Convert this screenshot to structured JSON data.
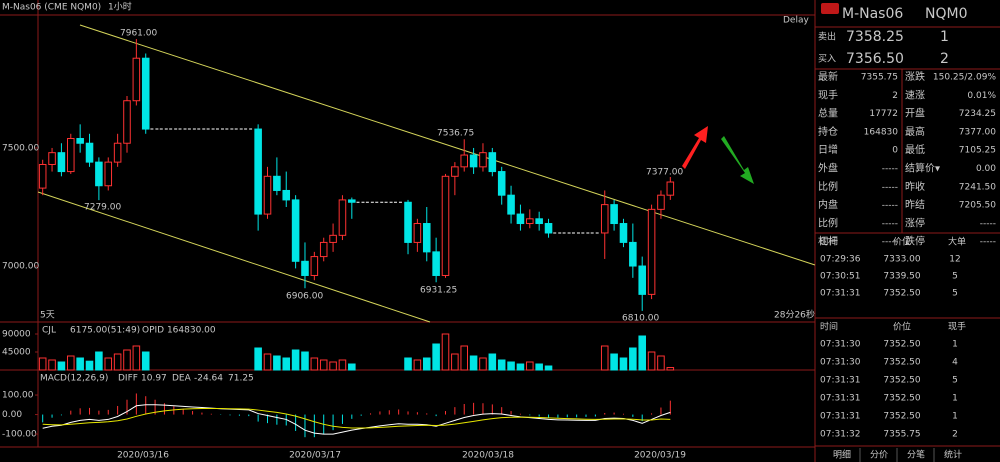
{
  "header": {
    "symbol": "M-Nas06",
    "code": "NQM0"
  },
  "chart_data": [
    {
      "type": "candlestick",
      "title": "M-Nas06 (CME NQM0)",
      "interval": "1小时",
      "delay": "Delay",
      "span": "5天",
      "countdown": "28分26秒",
      "date_labels": [
        "2020/03/16",
        "2020/03/17",
        "2020/03/18",
        "2020/03/19"
      ],
      "annotations": [
        "7961.00",
        "7279.00",
        "6906.00",
        "7536.75",
        "6931.25",
        "6810.00",
        "7377.00"
      ],
      "up_color": "#ff3232",
      "down_color": "#00e5e5",
      "flat_color": "#ffffff",
      "ylim": [
        6763,
        8063
      ],
      "yticks": [
        {
          "value": 7000,
          "label": "7000.00"
        },
        {
          "value": 7500,
          "label": "7500.00"
        }
      ],
      "ohlc": [
        [
          7330,
          7450,
          7300,
          7430
        ],
        [
          7430,
          7500,
          7400,
          7480
        ],
        [
          7480,
          7520,
          7380,
          7400
        ],
        [
          7400,
          7560,
          7390,
          7540
        ],
        [
          7540,
          7600,
          7480,
          7520
        ],
        [
          7520,
          7560,
          7420,
          7440
        ],
        [
          7440,
          7460,
          7279,
          7340
        ],
        [
          7340,
          7460,
          7320,
          7440
        ],
        [
          7440,
          7560,
          7420,
          7520
        ],
        [
          7520,
          7720,
          7480,
          7700
        ],
        [
          7700,
          7961,
          7680,
          7880
        ],
        [
          7880,
          7900,
          7560,
          7580
        ],
        [
          7580,
          7580,
          7580,
          7580
        ],
        [
          7580,
          7580,
          7580,
          7580
        ],
        [
          7580,
          7580,
          7580,
          7580
        ],
        [
          7580,
          7580,
          7580,
          7580
        ],
        [
          7580,
          7580,
          7580,
          7580
        ],
        [
          7580,
          7580,
          7580,
          7580
        ],
        [
          7580,
          7580,
          7580,
          7580
        ],
        [
          7580,
          7580,
          7580,
          7580
        ],
        [
          7580,
          7580,
          7580,
          7580
        ],
        [
          7580,
          7580,
          7580,
          7580
        ],
        [
          7580,
          7580,
          7580,
          7580
        ],
        [
          7580,
          7600,
          7150,
          7220
        ],
        [
          7220,
          7420,
          7200,
          7380
        ],
        [
          7380,
          7460,
          7300,
          7320
        ],
        [
          7320,
          7400,
          7250,
          7280
        ],
        [
          7280,
          7300,
          6990,
          7020
        ],
        [
          7020,
          7100,
          6906,
          6960
        ],
        [
          6960,
          7060,
          6940,
          7040
        ],
        [
          7040,
          7120,
          7020,
          7100
        ],
        [
          7100,
          7180,
          7060,
          7130
        ],
        [
          7130,
          7300,
          7110,
          7280
        ],
        [
          7280,
          7290,
          7200,
          7270
        ],
        [
          7270,
          7270,
          7270,
          7270
        ],
        [
          7270,
          7270,
          7270,
          7270
        ],
        [
          7270,
          7270,
          7270,
          7270
        ],
        [
          7270,
          7270,
          7270,
          7270
        ],
        [
          7270,
          7270,
          7270,
          7270
        ],
        [
          7270,
          7280,
          7050,
          7100
        ],
        [
          7100,
          7200,
          7060,
          7180
        ],
        [
          7180,
          7250,
          7020,
          7060
        ],
        [
          7060,
          7120,
          6931.25,
          6960
        ],
        [
          6960,
          7390,
          6950,
          7380
        ],
        [
          7380,
          7440,
          7300,
          7420
        ],
        [
          7420,
          7536.75,
          7400,
          7470
        ],
        [
          7470,
          7500,
          7390,
          7420
        ],
        [
          7420,
          7520,
          7400,
          7480
        ],
        [
          7480,
          7500,
          7380,
          7400
        ],
        [
          7400,
          7420,
          7260,
          7300
        ],
        [
          7300,
          7340,
          7180,
          7220
        ],
        [
          7220,
          7260,
          7150,
          7180
        ],
        [
          7180,
          7240,
          7160,
          7200
        ],
        [
          7200,
          7230,
          7150,
          7180
        ],
        [
          7180,
          7200,
          7120,
          7140
        ],
        [
          7140,
          7140,
          7140,
          7140
        ],
        [
          7140,
          7140,
          7140,
          7140
        ],
        [
          7140,
          7140,
          7140,
          7140
        ],
        [
          7140,
          7140,
          7140,
          7140
        ],
        [
          7140,
          7140,
          7140,
          7140
        ],
        [
          7140,
          7320,
          7030,
          7260
        ],
        [
          7260,
          7280,
          7150,
          7180
        ],
        [
          7180,
          7200,
          7080,
          7100
        ],
        [
          7100,
          7180,
          6950,
          7000
        ],
        [
          7000,
          7040,
          6810,
          6880
        ],
        [
          6880,
          7260,
          6860,
          7240
        ],
        [
          7240,
          7320,
          7200,
          7300
        ],
        [
          7300,
          7377,
          7280,
          7355.75
        ]
      ]
    },
    {
      "type": "bar",
      "name": "CJL",
      "info": "6175.00(51:49)",
      "opid": "OPID 164830.00",
      "ylim": [
        0,
        112500
      ],
      "yticks": [
        45000,
        90000
      ],
      "values": [
        30000,
        25000,
        20000,
        35000,
        30000,
        22000,
        45000,
        30000,
        40000,
        50000,
        60000,
        45000,
        0,
        0,
        0,
        0,
        0,
        0,
        0,
        0,
        0,
        0,
        0,
        55000,
        40000,
        35000,
        30000,
        50000,
        45000,
        30000,
        25000,
        20000,
        25000,
        15000,
        0,
        0,
        0,
        0,
        0,
        30000,
        25000,
        30000,
        65000,
        90000,
        40000,
        60000,
        35000,
        30000,
        40000,
        25000,
        20000,
        15000,
        20000,
        15000,
        10000,
        0,
        0,
        0,
        0,
        0,
        60000,
        40000,
        30000,
        55000,
        85000,
        45000,
        35000,
        6175
      ]
    },
    {
      "type": "macd",
      "name": "MACD(12,26,9)",
      "ylim": [
        -156,
        218
      ],
      "yticks": [
        {
          "value": 100,
          "label": "100.00"
        },
        {
          "value": 0,
          "label": "0.00"
        },
        {
          "value": -100,
          "label": "-100.00"
        }
      ],
      "hist": [
        -40,
        -16,
        -4,
        20,
        32,
        34,
        20,
        24,
        44,
        76,
        108,
        94,
        76,
        58,
        42,
        28,
        18,
        10,
        4,
        -2,
        -4,
        -6,
        -8,
        -36,
        -44,
        -52,
        -56,
        -84,
        -116,
        -116,
        -100,
        -80,
        -48,
        -22,
        -6,
        6,
        16,
        22,
        26,
        16,
        12,
        6,
        -8,
        18,
        38,
        54,
        60,
        58,
        52,
        38,
        18,
        4,
        -4,
        -10,
        -16,
        -16,
        -14,
        -14,
        -12,
        -10,
        8,
        10,
        4,
        -12,
        -34,
        6,
        36,
        71.25
      ],
      "series": [
        {
          "name": "DIFF",
          "color": "#ffffff",
          "values": [
            -70,
            -60,
            -55,
            -40,
            -30,
            -25,
            -30,
            -25,
            -10,
            15,
            45,
            50,
            50,
            48,
            45,
            42,
            39,
            36,
            33,
            30,
            28,
            26,
            24,
            5,
            -5,
            -15,
            -25,
            -50,
            -80,
            -95,
            -100,
            -100,
            -90,
            -80,
            -72,
            -65,
            -58,
            -52,
            -47,
            -50,
            -50,
            -52,
            -60,
            -45,
            -30,
            -15,
            -5,
            2,
            5,
            3,
            -5,
            -12,
            -16,
            -20,
            -25,
            -27,
            -28,
            -29,
            -30,
            -30,
            -20,
            -18,
            -20,
            -30,
            -45,
            -25,
            -5,
            10.97
          ]
        },
        {
          "name": "DEA",
          "color": "#e6e600",
          "values": [
            -50,
            -52,
            -53,
            -50,
            -46,
            -42,
            -40,
            -37,
            -32,
            -23,
            -9,
            3,
            12,
            19,
            24,
            28,
            30,
            31,
            31,
            31,
            30,
            29,
            28,
            23,
            17,
            11,
            3,
            -8,
            -22,
            -37,
            -50,
            -60,
            -66,
            -69,
            -69,
            -68,
            -66,
            -63,
            -60,
            -58,
            -56,
            -55,
            -56,
            -54,
            -49,
            -42,
            -35,
            -27,
            -21,
            -16,
            -14,
            -14,
            -14,
            -15,
            -17,
            -19,
            -21,
            -22,
            -24,
            -25,
            -24,
            -23,
            -22,
            -24,
            -28,
            -28,
            -23,
            -24.64
          ]
        }
      ]
    }
  ],
  "quote": {
    "ask": {
      "label": "卖出",
      "price": "7358.25",
      "qty": "1"
    },
    "bid": {
      "label": "买入",
      "price": "7356.50",
      "qty": "2"
    },
    "stats": [
      [
        {
          "label": "最新",
          "value": "7355.75",
          "color": "#ff3232"
        },
        {
          "label": "涨跌",
          "value": "150.25/2.09%",
          "color": "#ff3232"
        }
      ],
      [
        {
          "label": "现手",
          "value": "2",
          "color": "#ffff00"
        },
        {
          "label": "速涨",
          "value": "0.01%",
          "color": "#ff3232"
        }
      ],
      [
        {
          "label": "总量",
          "value": "17772",
          "color": "#ffff00"
        },
        {
          "label": "开盘",
          "value": "7234.25",
          "color": "#ff3232"
        }
      ],
      [
        {
          "label": "持仓",
          "value": "164830",
          "color": "#ffff00"
        },
        {
          "label": "最高",
          "value": "7377.00",
          "color": "#ff3232"
        }
      ],
      [
        {
          "label": "日增",
          "value": "0",
          "color": "#ffff00"
        },
        {
          "label": "最低",
          "value": "7105.25",
          "color": "#00ff00"
        }
      ],
      [
        {
          "label": "外盘",
          "value": "-----",
          "color": "#cccccc"
        },
        {
          "label": "结算价▾",
          "value": "0.00",
          "color": "#ffffff"
        }
      ],
      [
        {
          "label": "比例",
          "value": "-----",
          "color": "#cccccc"
        },
        {
          "label": "昨收",
          "value": "7241.50",
          "color": "#ffffff"
        }
      ],
      [
        {
          "label": "内盘",
          "value": "-----",
          "color": "#cccccc"
        },
        {
          "label": "昨结",
          "value": "7205.50",
          "color": "#ffffff"
        }
      ],
      [
        {
          "label": "比例",
          "value": "-----",
          "color": "#cccccc"
        },
        {
          "label": "涨停",
          "value": "-----",
          "color": "#cccccc"
        }
      ],
      [
        {
          "label": "杠杆",
          "value": "-----",
          "color": "#cccccc"
        },
        {
          "label": "跌停",
          "value": "-----",
          "color": "#cccccc"
        }
      ]
    ]
  },
  "big_orders": {
    "header": [
      "时间",
      "价位",
      "大单"
    ],
    "rows": [
      [
        "07:29:36",
        "7333.00",
        "12"
      ],
      [
        "07:30:51",
        "7339.50",
        "5"
      ],
      [
        "07:31:31",
        "7352.50",
        "5"
      ]
    ]
  },
  "trades": {
    "header": [
      "时间",
      "价位",
      "现手"
    ],
    "rows": [
      [
        "07:31:30",
        "7352.50",
        "1"
      ],
      [
        "07:31:30",
        "7352.50",
        "4"
      ],
      [
        "07:31:31",
        "7352.50",
        "5"
      ],
      [
        "07:31:31",
        "7352.50",
        "1"
      ],
      [
        "07:31:31",
        "7352.50",
        "1"
      ],
      [
        "07:31:32",
        "7355.75",
        "2"
      ]
    ]
  },
  "tabs": [
    "明细",
    "分价",
    "分笔",
    "统计"
  ]
}
